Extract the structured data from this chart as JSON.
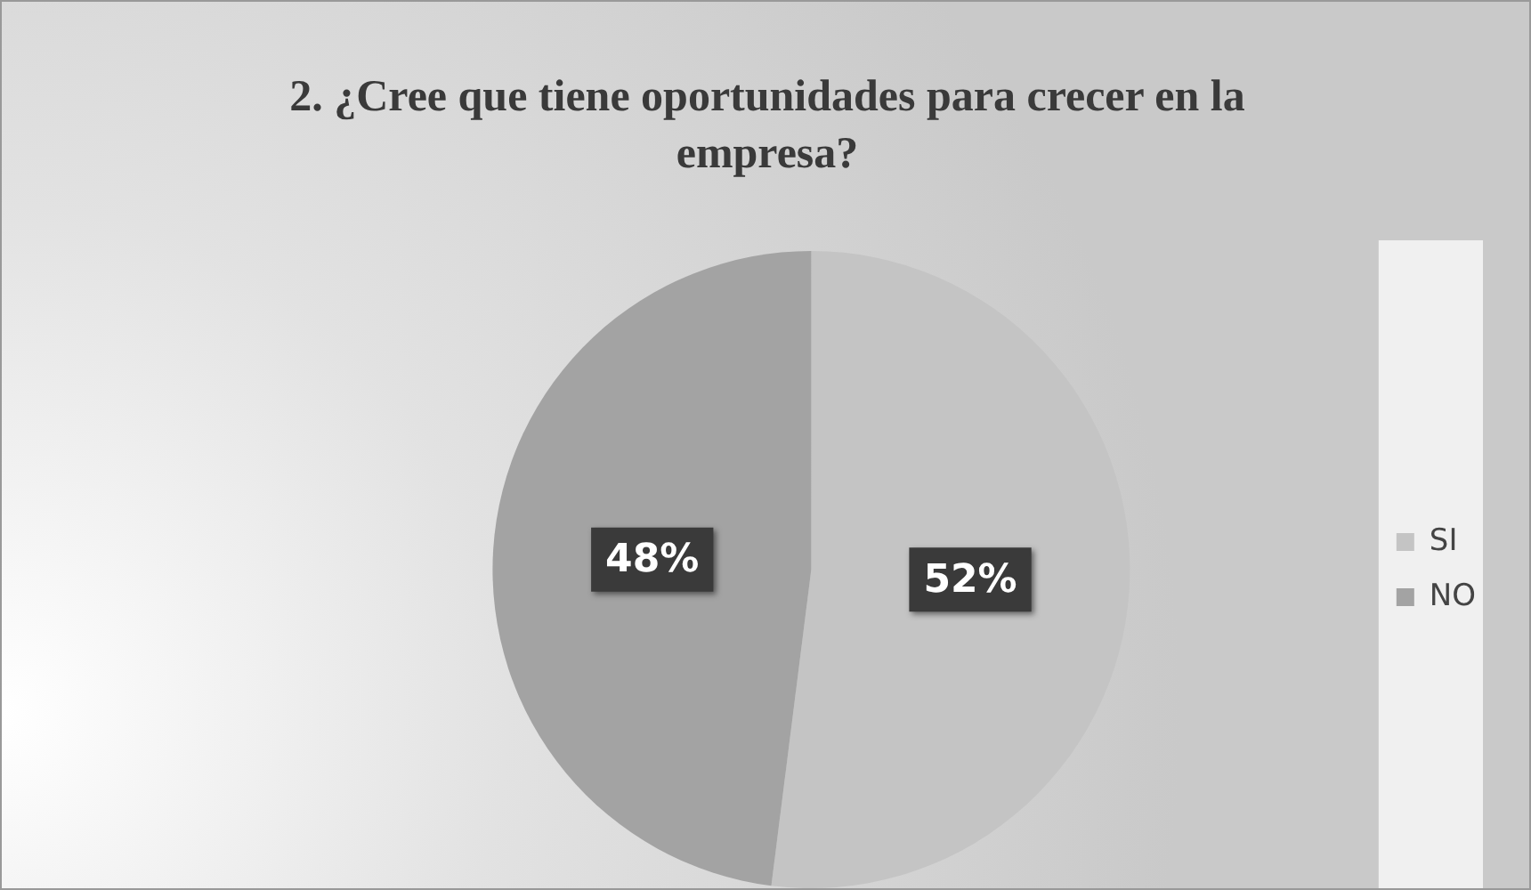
{
  "chart_data": {
    "type": "pie",
    "title": "2. ¿Cree que tiene oportunidades para crecer en la empresa?",
    "categories": [
      "SI",
      "NO"
    ],
    "values": [
      52,
      48
    ],
    "colors": [
      "#c4c4c4",
      "#a3a3a3"
    ],
    "value_labels": [
      "52%",
      "48%"
    ],
    "legend": "right"
  }
}
